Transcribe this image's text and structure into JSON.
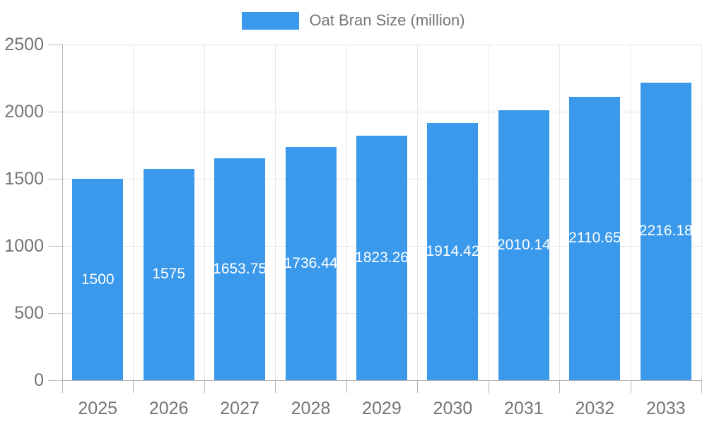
{
  "chart_data": {
    "type": "bar",
    "title": "",
    "legend": "Oat Bran Size (million)",
    "legend_position": "top",
    "categories": [
      "2025",
      "2026",
      "2027",
      "2028",
      "2029",
      "2030",
      "2031",
      "2032",
      "2033"
    ],
    "values": [
      1500,
      1575,
      1653.75,
      1736.44,
      1823.26,
      1914.42,
      2010.14,
      2110.65,
      2216.18
    ],
    "value_labels": [
      "1500",
      "1575",
      "1653.75",
      "1736.44",
      "1823.26",
      "1914.42",
      "2010.14",
      "2110.65",
      "2216.18"
    ],
    "xlabel": "",
    "ylabel": "",
    "ylim": [
      0,
      2500
    ],
    "yticks": [
      0,
      500,
      1000,
      1500,
      2000,
      2500
    ],
    "grid": true,
    "colors": {
      "bar": "#3b99ec",
      "value_label": "#ffffff",
      "axis_text": "#757575",
      "gridline": "#e6e6e6",
      "axis_line": "#b3b3b3",
      "tick": "#c0c0c0"
    }
  }
}
